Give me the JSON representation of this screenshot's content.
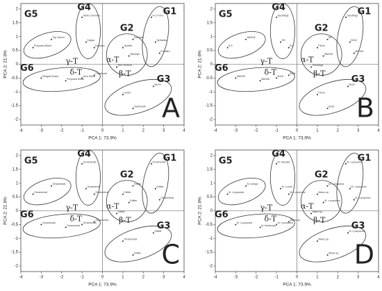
{
  "chart_data": [
    {
      "type": "scatter",
      "label": "A",
      "xlabel": "PCA 1: 73.9%",
      "ylabel": "PCA 2: 21.6%",
      "xlim": [
        -4,
        4
      ],
      "ylim": [
        -2.2,
        2.2
      ],
      "xticks": [
        -4,
        -3,
        -2,
        -1,
        0,
        1,
        2,
        3,
        4
      ],
      "yticks": [
        -2,
        -1.5,
        -1,
        -0.5,
        0,
        0.5,
        1,
        1.5,
        2
      ],
      "color": "#222",
      "x": [
        -3.4,
        -2.5,
        -1.0,
        -0.8,
        -0.4,
        2.4,
        2.6,
        2.8,
        1.0,
        1.5,
        1.3,
        0.7,
        -3.0,
        -1.8,
        -1.0,
        -0.4,
        1.0,
        2.5,
        1.5
      ],
      "y": [
        0.6,
        0.9,
        1.7,
        0.8,
        0.6,
        1.7,
        0.8,
        0.4,
        0.6,
        0.9,
        0.3,
        -0.1,
        -0.5,
        -0.6,
        -0.5,
        -0.4,
        -1.1,
        -0.8,
        -1.6
      ],
      "labels": [
        "Purpurea Åkerö",
        "Top Secret",
        "Tobiro Sammet",
        "Kappa",
        "Rudolph",
        "H-17-09-1",
        "Syrkanka",
        "Prairifire",
        "Quartet",
        "Evereste",
        "Sikzkaja",
        "Red Sentinel",
        "Sellgran Kiska",
        "Purpurea Kiska",
        "Ulva Kiska",
        "Coralburst",
        "Lieset",
        "Mi-Pil",
        "Dartmouth"
      ],
      "groups": [
        {
          "name": "G5",
          "cx": -2.7,
          "cy": 0.7,
          "rx": 1.2,
          "ry": 0.42,
          "angle": -18,
          "lx": -3.5,
          "ly": 1.8
        },
        {
          "name": "G4",
          "cx": -0.7,
          "cy": 1.2,
          "rx": 0.6,
          "ry": 1.0,
          "angle": 0,
          "lx": -0.9,
          "ly": 2.05
        },
        {
          "name": "G1",
          "cx": 2.6,
          "cy": 1.0,
          "rx": 0.6,
          "ry": 1.1,
          "angle": 10,
          "lx": 3.3,
          "ly": 1.9
        },
        {
          "name": "G2",
          "cx": 1.2,
          "cy": 0.35,
          "rx": 1.0,
          "ry": 0.75,
          "angle": 0,
          "lx": 1.2,
          "ly": 1.3
        },
        {
          "name": "G6",
          "cx": -2.0,
          "cy": -0.55,
          "rx": 1.9,
          "ry": 0.42,
          "angle": -5,
          "lx": -3.7,
          "ly": -0.15
        },
        {
          "name": "G3",
          "cx": 1.75,
          "cy": -1.2,
          "rx": 1.7,
          "ry": 0.55,
          "angle": -18,
          "lx": 3.0,
          "ly": -0.55
        }
      ],
      "annotations": [
        {
          "text": "α-T",
          "x": 0.5,
          "y": 0.15
        },
        {
          "text": "β-T",
          "x": 1.1,
          "y": -0.35
        },
        {
          "text": "γ-T",
          "x": -1.5,
          "y": 0.1
        },
        {
          "text": "δ-T",
          "x": -1.3,
          "y": -0.3
        }
      ]
    },
    {
      "type": "scatter",
      "label": "B",
      "xlabel": "PCA 1: 73.9%",
      "ylabel": "PCA 2: 21.6%",
      "xlim": [
        -4,
        4
      ],
      "ylim": [
        -2.2,
        2.2
      ],
      "xticks": [
        -4,
        -3,
        -2,
        -1,
        0,
        1,
        2,
        3,
        4
      ],
      "yticks": [
        -2,
        -1.5,
        -1,
        -0.5,
        0,
        0.5,
        1,
        1.5,
        2
      ],
      "color": "#222",
      "x": [
        -3.4,
        -2.5,
        -1.0,
        -0.8,
        -0.4,
        2.4,
        2.6,
        2.8,
        1.0,
        1.5,
        1.3,
        0.7,
        -3.0,
        -1.8,
        -1.0,
        -0.4,
        1.0,
        2.5,
        1.5
      ],
      "y": [
        0.6,
        0.9,
        1.7,
        0.8,
        0.6,
        1.7,
        0.8,
        0.4,
        0.6,
        0.9,
        0.3,
        -0.1,
        -0.5,
        -0.6,
        -0.5,
        -0.4,
        -1.1,
        -0.8,
        -1.6
      ],
      "labels": [
        "B.9",
        "MM106",
        "Seedlings",
        "M9",
        "B.9",
        "Seedlings",
        "B118",
        "MM106",
        "Pboni",
        "B9",
        "MM106",
        "Seedlings",
        "MM106",
        "MM106",
        "B118",
        "B118",
        "Pboni",
        "B118",
        "B118"
      ],
      "groups": [
        {
          "name": "G5",
          "cx": -2.7,
          "cy": 0.7,
          "rx": 1.2,
          "ry": 0.42,
          "angle": -18,
          "lx": -3.5,
          "ly": 1.8
        },
        {
          "name": "G4",
          "cx": -0.7,
          "cy": 1.2,
          "rx": 0.6,
          "ry": 1.0,
          "angle": 0,
          "lx": -0.9,
          "ly": 2.05
        },
        {
          "name": "G1",
          "cx": 2.6,
          "cy": 1.0,
          "rx": 0.6,
          "ry": 1.1,
          "angle": 10,
          "lx": 3.3,
          "ly": 1.9
        },
        {
          "name": "G2",
          "cx": 1.2,
          "cy": 0.35,
          "rx": 1.0,
          "ry": 0.75,
          "angle": 0,
          "lx": 1.2,
          "ly": 1.3
        },
        {
          "name": "G6",
          "cx": -2.0,
          "cy": -0.55,
          "rx": 1.9,
          "ry": 0.42,
          "angle": -5,
          "lx": -3.7,
          "ly": -0.15
        },
        {
          "name": "G3",
          "cx": 1.75,
          "cy": -1.2,
          "rx": 1.7,
          "ry": 0.55,
          "angle": -18,
          "lx": 3.0,
          "ly": -0.55
        }
      ],
      "annotations": [
        {
          "text": "α-T",
          "x": 0.5,
          "y": 0.15
        },
        {
          "text": "β-T",
          "x": 1.1,
          "y": -0.35
        },
        {
          "text": "γ-T",
          "x": -1.5,
          "y": 0.1
        },
        {
          "text": "δ-T",
          "x": -1.3,
          "y": -0.3
        }
      ]
    },
    {
      "type": "scatter",
      "label": "C",
      "xlabel": "PCA 1: 73.9%",
      "ylabel": "PCA 2: 21.6%",
      "xlim": [
        -4,
        4
      ],
      "ylim": [
        -2.2,
        2.2
      ],
      "xticks": [
        -4,
        -3,
        -2,
        -1,
        0,
        1,
        2,
        3,
        4
      ],
      "yticks": [
        -2,
        -1.5,
        -1,
        -0.5,
        0,
        0.5,
        1,
        1.5,
        2
      ],
      "color": "#222",
      "x": [
        -3.4,
        -2.5,
        -1.0,
        -0.8,
        -0.4,
        2.4,
        2.6,
        2.8,
        1.0,
        1.5,
        1.3,
        0.7,
        -3.0,
        -1.8,
        -1.0,
        -0.4,
        1.0,
        2.5,
        1.5
      ],
      "y": [
        0.6,
        0.9,
        1.7,
        0.8,
        0.6,
        1.7,
        0.8,
        0.4,
        0.6,
        0.9,
        0.3,
        -0.1,
        -0.5,
        -0.6,
        -0.5,
        -0.4,
        -1.1,
        -0.8,
        -1.6
      ],
      "labels": [
        "Ornamental",
        "Ornamental",
        "Ornamental",
        "Ornamental",
        "Ornamental",
        "Ornamental",
        "Edible",
        "Ornamental",
        "Edible",
        "Edible",
        "Edible",
        "Edible",
        "Ornamental",
        "Ornamental",
        "Ornamental",
        "Ornamental",
        "Ornamental",
        "Edible",
        "Edible"
      ],
      "groups": [
        {
          "name": "G5",
          "cx": -2.7,
          "cy": 0.7,
          "rx": 1.2,
          "ry": 0.42,
          "angle": -18,
          "lx": -3.5,
          "ly": 1.8
        },
        {
          "name": "G4",
          "cx": -0.7,
          "cy": 1.2,
          "rx": 0.6,
          "ry": 1.0,
          "angle": 0,
          "lx": -0.9,
          "ly": 2.05
        },
        {
          "name": "G1",
          "cx": 2.6,
          "cy": 1.0,
          "rx": 0.6,
          "ry": 1.1,
          "angle": 10,
          "lx": 3.3,
          "ly": 1.9
        },
        {
          "name": "G2",
          "cx": 1.2,
          "cy": 0.35,
          "rx": 1.0,
          "ry": 0.75,
          "angle": 0,
          "lx": 1.2,
          "ly": 1.3
        },
        {
          "name": "G6",
          "cx": -2.0,
          "cy": -0.55,
          "rx": 1.9,
          "ry": 0.42,
          "angle": -5,
          "lx": -3.7,
          "ly": -0.15
        },
        {
          "name": "G3",
          "cx": 1.75,
          "cy": -1.2,
          "rx": 1.7,
          "ry": 0.55,
          "angle": -18,
          "lx": 3.0,
          "ly": -0.55
        }
      ],
      "annotations": [
        {
          "text": "α-T",
          "x": 0.5,
          "y": 0.15
        },
        {
          "text": "β-T",
          "x": 1.1,
          "y": -0.35
        },
        {
          "text": "γ-T",
          "x": -1.5,
          "y": 0.1
        },
        {
          "text": "δ-T",
          "x": -1.3,
          "y": -0.3
        }
      ]
    },
    {
      "type": "scatter",
      "label": "D",
      "xlabel": "PCA 1: 73.9%",
      "ylabel": "PCA 2: 21.6%",
      "xlim": [
        -4,
        4
      ],
      "ylim": [
        -2.2,
        2.2
      ],
      "xticks": [
        -4,
        -3,
        -2,
        -1,
        0,
        1,
        2,
        3,
        4
      ],
      "yticks": [
        -2,
        -1.5,
        -1,
        -0.5,
        0,
        0.5,
        1,
        1.5,
        2
      ],
      "color": "#222",
      "x": [
        -3.4,
        -2.5,
        -1.0,
        -0.8,
        -0.4,
        2.4,
        2.6,
        2.8,
        1.0,
        1.5,
        1.3,
        0.7,
        -3.0,
        -1.8,
        -1.0,
        -0.4,
        1.0,
        2.5,
        1.5
      ],
      "y": [
        0.6,
        0.9,
        1.7,
        0.8,
        0.6,
        1.7,
        0.8,
        0.4,
        0.6,
        0.9,
        0.3,
        -0.1,
        -0.5,
        -0.6,
        -0.5,
        -0.4,
        -1.1,
        -0.8,
        -1.6
      ],
      "labels": [
        "M. x purpurea",
        "M. toringo",
        "M. baccata",
        "M. x zumi",
        "M. x purpurea",
        "M. x purpurea",
        "M. x purpurea",
        "M. x purpurea",
        "Malus sp.",
        "M. x purpurea",
        "M. x purpurea",
        "Malus sp.",
        "M. x purpurea",
        "M. floribunda",
        "M. x purpurea",
        "Malus sp.",
        "Malus sp.",
        "M. x purpurea",
        "Malus sp."
      ],
      "groups": [
        {
          "name": "G5",
          "cx": -2.7,
          "cy": 0.7,
          "rx": 1.2,
          "ry": 0.42,
          "angle": -18,
          "lx": -3.5,
          "ly": 1.8
        },
        {
          "name": "G4",
          "cx": -0.7,
          "cy": 1.2,
          "rx": 0.6,
          "ry": 1.0,
          "angle": 0,
          "lx": -0.9,
          "ly": 2.05
        },
        {
          "name": "G1",
          "cx": 2.6,
          "cy": 1.0,
          "rx": 0.6,
          "ry": 1.1,
          "angle": 10,
          "lx": 3.3,
          "ly": 1.9
        },
        {
          "name": "G2",
          "cx": 1.2,
          "cy": 0.35,
          "rx": 1.0,
          "ry": 0.75,
          "angle": 0,
          "lx": 1.2,
          "ly": 1.3
        },
        {
          "name": "G6",
          "cx": -2.0,
          "cy": -0.55,
          "rx": 1.9,
          "ry": 0.42,
          "angle": -5,
          "lx": -3.7,
          "ly": -0.15
        },
        {
          "name": "G3",
          "cx": 1.75,
          "cy": -1.2,
          "rx": 1.7,
          "ry": 0.55,
          "angle": -18,
          "lx": 3.0,
          "ly": -0.55
        }
      ],
      "annotations": [
        {
          "text": "α-T",
          "x": 0.5,
          "y": 0.15
        },
        {
          "text": "β-T",
          "x": 1.1,
          "y": -0.35
        },
        {
          "text": "γ-T",
          "x": -1.5,
          "y": 0.1
        },
        {
          "text": "δ-T",
          "x": -1.3,
          "y": -0.3
        }
      ]
    }
  ]
}
